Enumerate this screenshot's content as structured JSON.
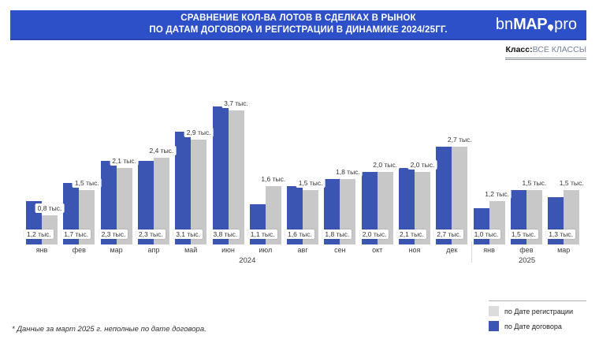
{
  "header": {
    "title_line1": "СРАВНЕНИЕ КОЛ-ВА ЛОТОВ В СДЕЛКАХ В РЫНОК",
    "title_line2": "ПО ДАТАМ ДОГОВОРА И РЕГИСТРАЦИИ В ДИНАМИКЕ 2024/25ГГ.",
    "banner_color": "#2d50c8",
    "logo": {
      "part1": "bn",
      "part2": "MAP",
      "part3": "pro"
    }
  },
  "filter": {
    "label": "Класс:",
    "value": "ВСЕ КЛАССЫ"
  },
  "chart_data": {
    "type": "bar",
    "title": "СРАВНЕНИЕ КОЛ-ВА ЛОТОВ В СДЕЛКАХ В РЫНОК ПО ДАТАМ ДОГОВОРА И РЕГИСТРАЦИИ В ДИНАМИКЕ 2024/25ГГ.",
    "value_suffix": "тыс.",
    "grid": "off",
    "legend_position": "bottom-right",
    "ylim": [
      0,
      4.2
    ],
    "categories": [
      "янв",
      "фев",
      "мар",
      "апр",
      "май",
      "июн",
      "июл",
      "авг",
      "сен",
      "окт",
      "ноя",
      "дек",
      "янв",
      "фев",
      "мар"
    ],
    "year_groups": [
      {
        "label": "2024",
        "span": 12
      },
      {
        "label": "2025",
        "span": 3
      }
    ],
    "series": [
      {
        "name": "по Дате договора",
        "color": "#3a55b2",
        "values": [
          1.2,
          1.7,
          2.3,
          2.3,
          3.1,
          3.8,
          1.1,
          1.6,
          1.8,
          2.0,
          2.1,
          2.7,
          1.0,
          1.5,
          1.3
        ]
      },
      {
        "name": "по Дате регистрации",
        "color": "#c8c8c8",
        "values": [
          0.8,
          1.5,
          2.1,
          2.4,
          2.9,
          3.7,
          1.6,
          1.5,
          1.8,
          2.0,
          2.0,
          2.7,
          1.2,
          1.5,
          1.5
        ]
      }
    ]
  },
  "legend": {
    "items": [
      {
        "label": "по Дате регистрации",
        "color": "#dcdcdc"
      },
      {
        "label": "по Дате договора",
        "color": "#3a55b2"
      }
    ]
  },
  "footnote": "* Данные за март 2025 г. неполные по дате договора."
}
